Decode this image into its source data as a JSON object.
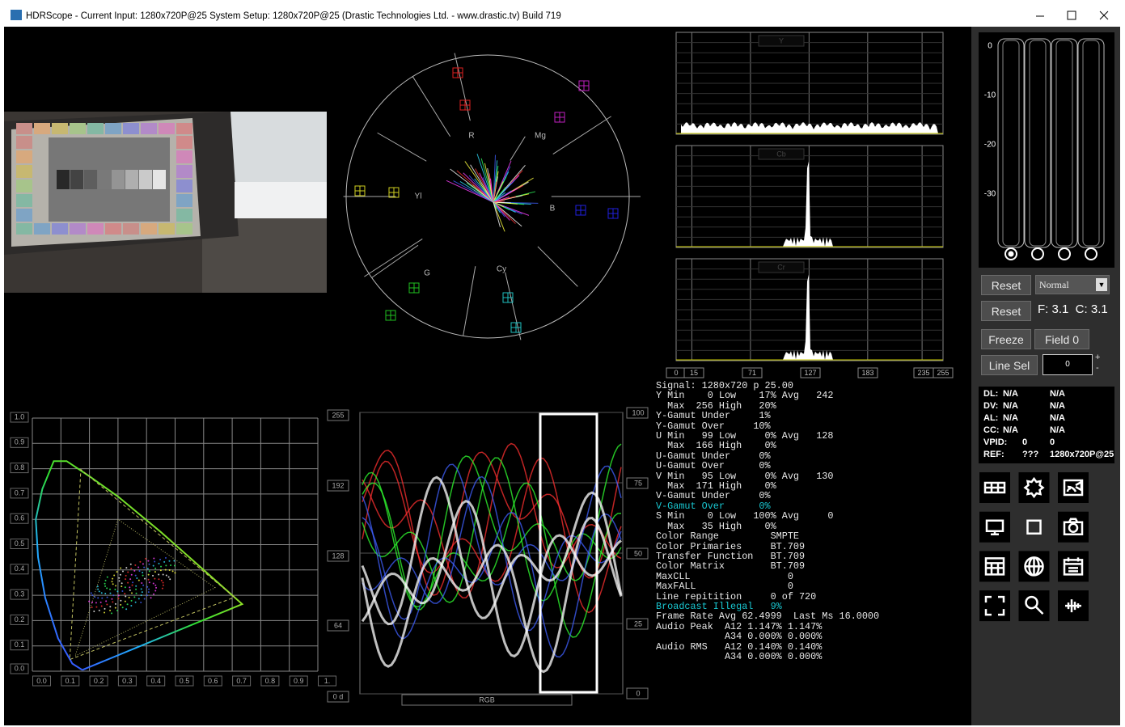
{
  "window": {
    "title": "HDRScope -  Current Input: 1280x720P@25   System Setup: 1280x720P@25     (Drastic Technologies Ltd. - www.drastic.tv) Build 719"
  },
  "vectorscope": {
    "labels": [
      "R",
      "Mg",
      "B",
      "Cy",
      "G",
      "Yl"
    ]
  },
  "histogram": {
    "panels": [
      "Y",
      "Cb",
      "Cr"
    ],
    "scale": [
      "0",
      "15",
      "71",
      "127",
      "183",
      "235",
      "255"
    ]
  },
  "stats": {
    "lines": [
      "Signal: 1280x720 p 25.00",
      "Y Min    0 Low    17% Avg   242",
      "  Max  256 High   20%",
      "Y-Gamut Under     1%",
      "Y-Gamut Over     10%",
      "U Min   99 Low     0% Avg   128",
      "  Max  166 High    0%",
      "U-Gamut Under     0%",
      "U-Gamut Over      0%",
      "V Min   95 Low     0% Avg   130",
      "  Max  171 High    0%",
      "V-Gamut Under     0%",
      {
        "text": "V-Gamut Over      0%",
        "color": "#19c8d2"
      },
      "S Min    0 Low   100% Avg     0",
      "  Max   35 High    0%",
      "Color Range         SMPTE",
      "Color Primaries     BT.709",
      "Transfer Function   BT.709",
      "Color Matrix        BT.709",
      "MaxCLL                 0",
      "MaxFALL                0",
      "Line repitition     0 of 720",
      {
        "text": "Broadcast Illegal   9%",
        "color": "#19c8d2"
      },
      "Frame Rate Avg 62.4999  Last Ms 16.0000",
      "Audio Peak  A12 1.147% 1.147%",
      "            A34 0.000% 0.000%",
      "Audio RMS   A12 0.140% 0.140%",
      "            A34 0.000% 0.000%"
    ]
  },
  "cie": {
    "x_ticks": [
      "0.0",
      "0.1",
      "0.2",
      "0.3",
      "0.4",
      "0.5",
      "0.6",
      "0.7",
      "0.8",
      "0.9",
      "1."
    ],
    "y_ticks": [
      "0.0",
      "0.1",
      "0.2",
      "0.3",
      "0.4",
      "0.5",
      "0.6",
      "0.7",
      "0.8",
      "0.9",
      "1.0"
    ]
  },
  "waveform": {
    "left_ticks": [
      "255",
      "192",
      "128",
      "64",
      "0 d"
    ],
    "right_ticks": [
      "100",
      "75",
      "50",
      "25",
      "0"
    ],
    "label": "RGB"
  },
  "audio": {
    "ticks": [
      "0",
      "-10",
      "-20",
      "-30"
    ]
  },
  "controls": {
    "reset_1": "Reset",
    "mode": "Normal",
    "reset_2": "Reset",
    "fc": "F: 3.1  C: 3.1",
    "freeze": "Freeze",
    "field": "Field 0",
    "line_sel": "Line Sel",
    "line_value": "0",
    "plus": "+",
    "minus": "-"
  },
  "info": {
    "rows": [
      [
        "DL:",
        "N/A",
        "N/A"
      ],
      [
        "DV:",
        "N/A",
        "N/A"
      ],
      [
        "AL:",
        "N/A",
        "N/A"
      ],
      [
        "CC:",
        "N/A",
        "N/A"
      ],
      [
        "VPID:",
        "0",
        "0"
      ],
      [
        "REF:",
        "???",
        "1280x720P@25"
      ]
    ]
  }
}
